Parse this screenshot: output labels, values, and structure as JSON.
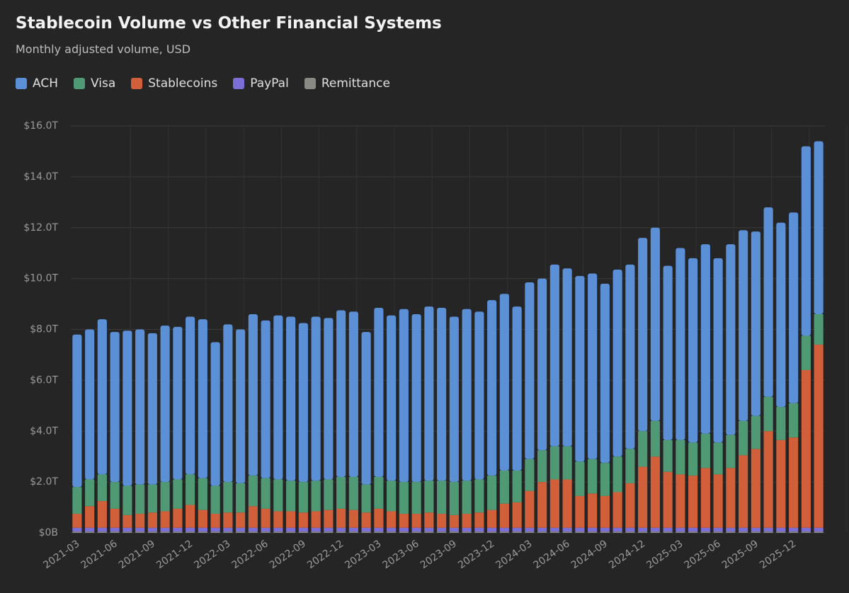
{
  "chart_data": {
    "type": "stacked-bar",
    "title": "Stablecoin Volume vs Other Financial Systems",
    "subtitle": "Monthly adjusted volume, USD",
    "categories": [
      "2021-03",
      null,
      null,
      "2021-06",
      null,
      null,
      "2021-09",
      null,
      null,
      "2021-12",
      null,
      null,
      "2022-03",
      null,
      null,
      "2022-06",
      null,
      null,
      "2022-09",
      null,
      null,
      "2022-12",
      null,
      null,
      "2023-03",
      null,
      null,
      "2023-06",
      null,
      null,
      "2023-09",
      null,
      null,
      "2023-12",
      null,
      null,
      "2024-03",
      null,
      null,
      "2024-06",
      null,
      null,
      "2024-09",
      null,
      null,
      "2024-12",
      null,
      null,
      "2025-03",
      null,
      null,
      "2025-06",
      null,
      null,
      "2025-09",
      null,
      null,
      "2025-12",
      null,
      null
    ],
    "series": [
      {
        "name": "ACH",
        "color": "#5b8fd6",
        "values": [
          6.0,
          5.9,
          6.1,
          5.9,
          6.1,
          6.1,
          5.95,
          6.15,
          6.0,
          6.2,
          6.25,
          5.65,
          6.2,
          6.05,
          6.35,
          6.2,
          6.45,
          6.45,
          6.25,
          6.45,
          6.35,
          6.55,
          6.5,
          6.0,
          6.65,
          6.5,
          6.8,
          6.6,
          6.85,
          6.8,
          6.5,
          6.75,
          6.6,
          6.9,
          6.95,
          6.45,
          6.95,
          6.75,
          7.15,
          7.0,
          7.3,
          7.3,
          7.05,
          7.35,
          7.25,
          7.6,
          7.6,
          6.85,
          7.55,
          7.25,
          7.45,
          7.25,
          7.5,
          7.5,
          7.25,
          7.45,
          7.25,
          7.5,
          7.45,
          6.8
        ]
      },
      {
        "name": "Visa",
        "color": "#4f9a74",
        "values": [
          1.05,
          1.05,
          1.05,
          1.05,
          1.15,
          1.15,
          1.1,
          1.15,
          1.15,
          1.2,
          1.25,
          1.1,
          1.2,
          1.15,
          1.2,
          1.2,
          1.25,
          1.2,
          1.2,
          1.2,
          1.2,
          1.25,
          1.3,
          1.1,
          1.25,
          1.2,
          1.25,
          1.25,
          1.25,
          1.3,
          1.3,
          1.3,
          1.3,
          1.35,
          1.3,
          1.25,
          1.25,
          1.25,
          1.3,
          1.3,
          1.35,
          1.35,
          1.3,
          1.4,
          1.35,
          1.4,
          1.4,
          1.25,
          1.35,
          1.3,
          1.35,
          1.25,
          1.3,
          1.35,
          1.3,
          1.35,
          1.3,
          1.35,
          1.35,
          1.2
        ]
      },
      {
        "name": "Stablecoins",
        "color": "#d15f3a",
        "values": [
          0.55,
          0.85,
          1.05,
          0.75,
          0.5,
          0.55,
          0.6,
          0.65,
          0.75,
          0.9,
          0.7,
          0.55,
          0.6,
          0.6,
          0.85,
          0.75,
          0.65,
          0.65,
          0.6,
          0.65,
          0.7,
          0.75,
          0.7,
          0.6,
          0.75,
          0.65,
          0.55,
          0.55,
          0.6,
          0.55,
          0.5,
          0.55,
          0.6,
          0.7,
          0.95,
          1.0,
          1.45,
          1.8,
          1.9,
          1.9,
          1.25,
          1.35,
          1.25,
          1.4,
          1.75,
          2.4,
          2.8,
          2.2,
          2.1,
          2.05,
          2.35,
          2.1,
          2.35,
          2.85,
          3.1,
          3.8,
          3.45,
          3.55,
          6.2,
          7.2
        ]
      },
      {
        "name": "PayPal",
        "color": "#7b6fd6",
        "values": [
          0.15,
          0.15,
          0.15,
          0.15,
          0.15,
          0.15,
          0.15,
          0.15,
          0.15,
          0.15,
          0.15,
          0.15,
          0.15,
          0.15,
          0.15,
          0.15,
          0.15,
          0.15,
          0.15,
          0.15,
          0.15,
          0.15,
          0.15,
          0.15,
          0.15,
          0.15,
          0.15,
          0.15,
          0.15,
          0.15,
          0.15,
          0.15,
          0.15,
          0.15,
          0.15,
          0.15,
          0.15,
          0.15,
          0.15,
          0.15,
          0.15,
          0.15,
          0.15,
          0.15,
          0.15,
          0.15,
          0.15,
          0.15,
          0.15,
          0.15,
          0.15,
          0.15,
          0.15,
          0.15,
          0.15,
          0.15,
          0.15,
          0.15,
          0.15,
          0.15
        ]
      },
      {
        "name": "Remittance",
        "color": "#8a8a85",
        "values": [
          0.05,
          0.05,
          0.05,
          0.05,
          0.05,
          0.05,
          0.05,
          0.05,
          0.05,
          0.05,
          0.05,
          0.05,
          0.05,
          0.05,
          0.05,
          0.05,
          0.05,
          0.05,
          0.05,
          0.05,
          0.05,
          0.05,
          0.05,
          0.05,
          0.05,
          0.05,
          0.05,
          0.05,
          0.05,
          0.05,
          0.05,
          0.05,
          0.05,
          0.05,
          0.05,
          0.05,
          0.05,
          0.05,
          0.05,
          0.05,
          0.05,
          0.05,
          0.05,
          0.05,
          0.05,
          0.05,
          0.05,
          0.05,
          0.05,
          0.05,
          0.05,
          0.05,
          0.05,
          0.05,
          0.05,
          0.05,
          0.05,
          0.05,
          0.05,
          0.05
        ]
      }
    ],
    "ylim": [
      0,
      16
    ],
    "yticks": [
      {
        "value": 0,
        "label": "$0B"
      },
      {
        "value": 2,
        "label": "$2.0T"
      },
      {
        "value": 4,
        "label": "$4.0T"
      },
      {
        "value": 6,
        "label": "$6.0T"
      },
      {
        "value": 8,
        "label": "$8.0T"
      },
      {
        "value": 10,
        "label": "$10.0T"
      },
      {
        "value": 12,
        "label": "$12.0T"
      },
      {
        "value": 14,
        "label": "$14.0T"
      },
      {
        "value": 16,
        "label": "$16.0T"
      }
    ],
    "grid": true,
    "legend": "top-left"
  }
}
